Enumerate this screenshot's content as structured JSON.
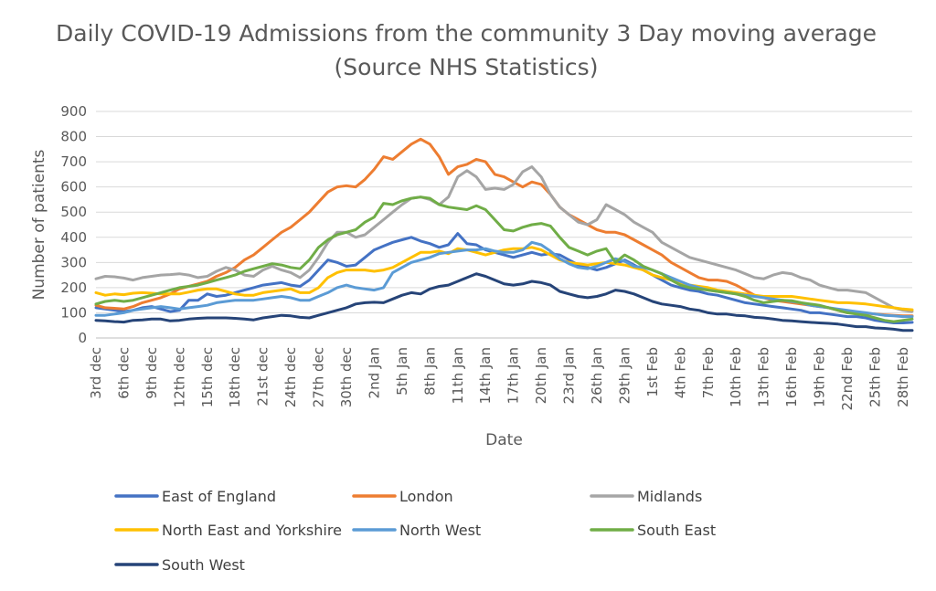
{
  "chart_data": {
    "type": "line",
    "title": "Daily COVID-19 Admissions from the community 3 Day moving average (Source NHS Statistics)",
    "xlabel": "Date",
    "ylabel": "Number of patients",
    "ylim": [
      0,
      900
    ],
    "yticks": [
      0,
      100,
      200,
      300,
      400,
      500,
      600,
      700,
      800,
      900
    ],
    "grid": true,
    "legend_position": "bottom",
    "x_tick_labels": [
      "3rd dec",
      "6th dec",
      "9th dec",
      "12th dec",
      "15th dec",
      "18th dec",
      "21st dec",
      "24th dec",
      "27th dec",
      "30th dec",
      "2nd Jan",
      "5th Jan",
      "8th Jan",
      "11th Jan",
      "14th Jan",
      "17th Jan",
      "20th Jan",
      "23rd Jan",
      "26th Jan",
      "29th Jan",
      "1st Feb",
      "4th Feb",
      "7th Feb",
      "10th Feb",
      "13th Feb",
      "16th Feb",
      "19th Feb",
      "22nd Feb",
      "25th Feb",
      "28th Feb"
    ],
    "series": [
      {
        "name": "East of England",
        "color": "#4472C4",
        "values": [
          120,
          115,
          110,
          105,
          110,
          120,
          125,
          115,
          105,
          110,
          150,
          150,
          175,
          165,
          170,
          180,
          190,
          200,
          210,
          215,
          220,
          210,
          205,
          230,
          270,
          310,
          300,
          285,
          290,
          320,
          350,
          365,
          380,
          390,
          400,
          385,
          375,
          360,
          370,
          415,
          375,
          370,
          350,
          340,
          330,
          320,
          330,
          340,
          330,
          335,
          330,
          310,
          290,
          280,
          270,
          280,
          295,
          310,
          290,
          270,
          250,
          230,
          210,
          200,
          190,
          185,
          175,
          170,
          160,
          150,
          140,
          135,
          130,
          125,
          120,
          115,
          110,
          100,
          100,
          95,
          90,
          85,
          85,
          80,
          70,
          65,
          60,
          60,
          62
        ]
      },
      {
        "name": "London",
        "color": "#ED7D31",
        "values": [
          130,
          120,
          118,
          115,
          125,
          140,
          150,
          160,
          175,
          195,
          205,
          215,
          225,
          245,
          260,
          280,
          310,
          330,
          360,
          390,
          420,
          440,
          470,
          500,
          540,
          580,
          600,
          605,
          600,
          630,
          670,
          720,
          710,
          740,
          770,
          790,
          770,
          720,
          650,
          680,
          690,
          710,
          700,
          650,
          640,
          620,
          600,
          620,
          610,
          570,
          520,
          490,
          470,
          450,
          430,
          420,
          420,
          410,
          390,
          370,
          350,
          330,
          300,
          280,
          260,
          240,
          230,
          230,
          225,
          210,
          190,
          170,
          160,
          150,
          145,
          140,
          135,
          130,
          125,
          120,
          110,
          100,
          100,
          98,
          95,
          92,
          90,
          88,
          88
        ]
      },
      {
        "name": "Midlands",
        "color": "#A5A5A5",
        "values": [
          235,
          245,
          243,
          238,
          230,
          240,
          245,
          250,
          252,
          255,
          250,
          240,
          245,
          265,
          280,
          270,
          250,
          245,
          270,
          285,
          270,
          260,
          240,
          270,
          320,
          380,
          420,
          420,
          400,
          410,
          440,
          470,
          500,
          530,
          555,
          560,
          550,
          530,
          560,
          640,
          665,
          640,
          590,
          595,
          590,
          610,
          660,
          680,
          640,
          570,
          520,
          490,
          460,
          450,
          470,
          530,
          510,
          490,
          460,
          440,
          420,
          380,
          360,
          340,
          320,
          310,
          300,
          290,
          280,
          270,
          255,
          240,
          235,
          250,
          260,
          255,
          240,
          230,
          210,
          200,
          190,
          190,
          185,
          180,
          160,
          140,
          120,
          110,
          105
        ]
      },
      {
        "name": "North East and Yorkshire",
        "color": "#FFC000",
        "values": [
          180,
          170,
          175,
          172,
          178,
          180,
          178,
          175,
          175,
          175,
          182,
          190,
          195,
          195,
          185,
          175,
          170,
          170,
          180,
          185,
          190,
          195,
          180,
          180,
          200,
          240,
          260,
          270,
          270,
          270,
          265,
          270,
          280,
          300,
          320,
          340,
          340,
          345,
          335,
          355,
          350,
          340,
          330,
          340,
          350,
          355,
          355,
          360,
          350,
          330,
          310,
          300,
          295,
          290,
          295,
          300,
          295,
          290,
          280,
          270,
          250,
          240,
          230,
          220,
          210,
          205,
          200,
          190,
          185,
          180,
          175,
          170,
          165,
          165,
          165,
          165,
          160,
          155,
          150,
          145,
          140,
          140,
          138,
          135,
          130,
          125,
          120,
          115,
          112
        ]
      },
      {
        "name": "North West",
        "color": "#5B9BD5",
        "values": [
          90,
          90,
          95,
          100,
          110,
          115,
          120,
          125,
          120,
          115,
          120,
          125,
          130,
          140,
          145,
          150,
          150,
          150,
          155,
          160,
          165,
          160,
          150,
          150,
          165,
          180,
          200,
          210,
          200,
          195,
          190,
          200,
          260,
          280,
          300,
          310,
          320,
          335,
          340,
          345,
          350,
          350,
          355,
          345,
          340,
          340,
          350,
          380,
          370,
          345,
          315,
          295,
          280,
          275,
          285,
          300,
          315,
          305,
          285,
          280,
          270,
          255,
          240,
          225,
          210,
          200,
          190,
          185,
          180,
          175,
          170,
          165,
          160,
          155,
          150,
          145,
          140,
          130,
          125,
          120,
          115,
          110,
          105,
          100,
          95,
          90,
          88,
          85,
          85
        ]
      },
      {
        "name": "South East",
        "color": "#70AD47",
        "values": [
          135,
          145,
          150,
          145,
          150,
          160,
          170,
          180,
          190,
          200,
          205,
          210,
          220,
          230,
          240,
          250,
          265,
          275,
          285,
          295,
          290,
          280,
          275,
          310,
          360,
          390,
          410,
          420,
          430,
          460,
          480,
          535,
          530,
          545,
          555,
          560,
          555,
          530,
          520,
          515,
          510,
          525,
          510,
          470,
          430,
          425,
          440,
          450,
          455,
          445,
          400,
          360,
          345,
          330,
          345,
          355,
          300,
          330,
          310,
          285,
          270,
          255,
          230,
          210,
          200,
          195,
          190,
          185,
          180,
          175,
          165,
          150,
          140,
          145,
          150,
          148,
          140,
          135,
          130,
          120,
          110,
          100,
          95,
          90,
          80,
          70,
          65,
          70,
          75
        ]
      },
      {
        "name": "South West",
        "color": "#264478",
        "values": [
          70,
          68,
          65,
          63,
          70,
          72,
          75,
          75,
          68,
          70,
          75,
          78,
          80,
          80,
          80,
          78,
          75,
          72,
          80,
          85,
          90,
          88,
          82,
          80,
          90,
          100,
          110,
          120,
          135,
          140,
          142,
          140,
          155,
          170,
          180,
          175,
          195,
          205,
          210,
          225,
          240,
          255,
          245,
          230,
          215,
          210,
          215,
          225,
          220,
          210,
          185,
          175,
          165,
          160,
          165,
          175,
          190,
          185,
          175,
          160,
          145,
          135,
          130,
          125,
          115,
          110,
          100,
          95,
          95,
          90,
          88,
          82,
          80,
          75,
          70,
          68,
          65,
          62,
          60,
          58,
          55,
          50,
          45,
          45,
          40,
          38,
          35,
          30,
          30
        ]
      }
    ]
  }
}
